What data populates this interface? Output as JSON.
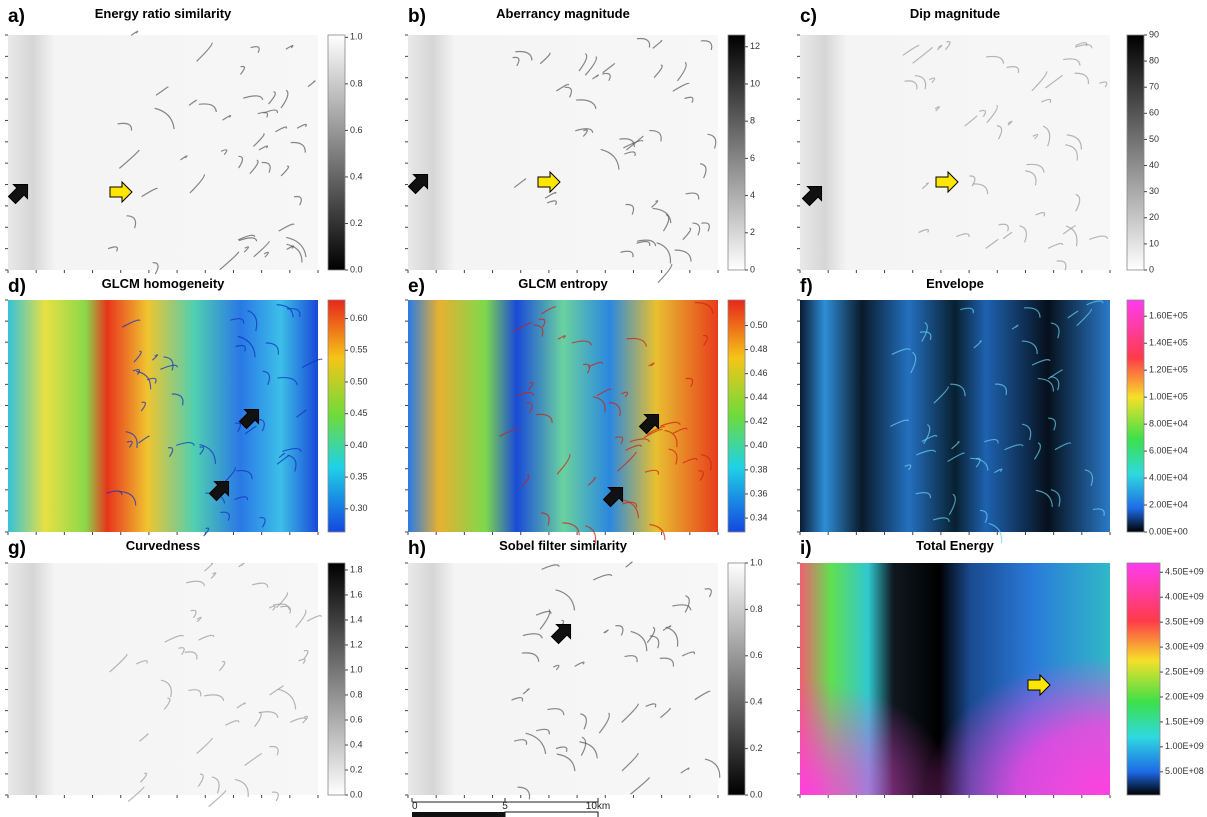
{
  "panels": [
    {
      "letter": "a)",
      "title": "Energy ratio similarity",
      "ticks": [
        "1.0",
        "0.8",
        "0.6",
        "0.4",
        "0.2",
        "0.0"
      ]
    },
    {
      "letter": "b)",
      "title": "Aberrancy magnitude",
      "ticks": [
        "12",
        "10",
        "8",
        "6",
        "4",
        "2",
        "0"
      ]
    },
    {
      "letter": "c)",
      "title": "Dip magnitude",
      "ticks": [
        "90",
        "80",
        "70",
        "60",
        "50",
        "40",
        "30",
        "20",
        "10",
        "0"
      ]
    },
    {
      "letter": "d)",
      "title": "GLCM homogeneity",
      "ticks": [
        "0.60",
        "0.55",
        "0.50",
        "0.45",
        "0.40",
        "0.35",
        "0.30"
      ]
    },
    {
      "letter": "e)",
      "title": "GLCM entropy",
      "ticks": [
        "0.50",
        "0.48",
        "0.46",
        "0.44",
        "0.42",
        "0.40",
        "0.38",
        "0.36",
        "0.34"
      ]
    },
    {
      "letter": "f)",
      "title": "Envelope",
      "ticks": [
        "1.60E+05",
        "1.40E+05",
        "1.20E+05",
        "1.00E+05",
        "8.00E+04",
        "6.00E+04",
        "4.00E+04",
        "2.00E+04",
        "0.00E+00"
      ]
    },
    {
      "letter": "g)",
      "title": "Curvedness",
      "ticks": [
        "1.8",
        "1.6",
        "1.4",
        "1.2",
        "1.0",
        "0.8",
        "0.6",
        "0.4",
        "0.2",
        "0.0"
      ]
    },
    {
      "letter": "h)",
      "title": "Sobel filter similarity",
      "ticks": [
        "1.0",
        "0.8",
        "0.6",
        "0.4",
        "0.2",
        "0.0"
      ]
    },
    {
      "letter": "i)",
      "title": "Total Energy",
      "ticks": [
        "4.50E+09",
        "4.00E+09",
        "3.50E+09",
        "3.00E+09",
        "2.50E+09",
        "2.00E+09",
        "1.50E+09",
        "1.00E+09",
        "5.00E+08"
      ]
    }
  ],
  "scale_bar": {
    "labels": [
      "0",
      "5",
      "10km"
    ]
  }
}
